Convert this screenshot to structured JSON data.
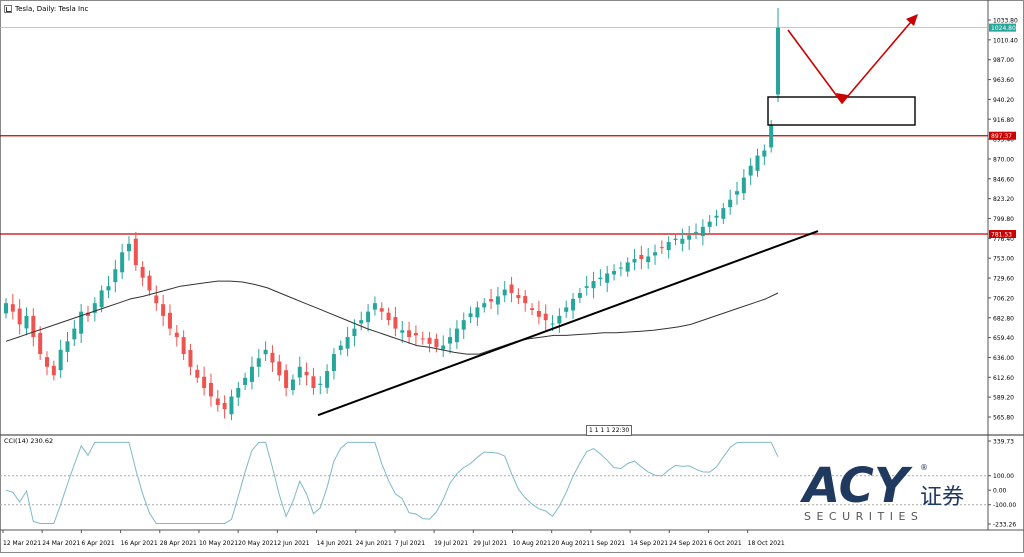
{
  "window": {
    "title": "Tesla, Daily:  Tesla Inc"
  },
  "colors": {
    "bull": "#26a69a",
    "bear": "#ef5350",
    "hline": "#cc0000",
    "trend": "#000000",
    "ma": "#333333",
    "cci": "#7fb8c9",
    "arrow": "#cc0000",
    "price_tag": "#26a69a"
  },
  "price_axis": {
    "labels": [
      "1033.80",
      "1010.40",
      "987.00",
      "963.60",
      "940.20",
      "916.80",
      "893.40",
      "870.00",
      "846.60",
      "823.20",
      "799.80",
      "776.40",
      "753.00",
      "729.60",
      "706.20",
      "682.80",
      "659.40",
      "636.00",
      "612.60",
      "589.20",
      "565.80"
    ],
    "current_price": "1024.80",
    "level_upper": "897.37",
    "level_lower": "781.53"
  },
  "cci_axis": {
    "labels": [
      "339.73",
      "100.00",
      "0.00",
      "-100.00",
      "-233.26"
    ]
  },
  "indicator_label": "CCI(14) 230.62",
  "time_marker": "1 1 1 1 22:30",
  "time_axis": [
    "12 Mar 2021",
    "24 Mar 2021",
    "6 Apr 2021",
    "16 Apr 2021",
    "28 Apr 2021",
    "10 May 2021",
    "20 May 2021",
    "2 Jun 2021",
    "14 Jun 2021",
    "24 Jun 2021",
    "7 Jul 2021",
    "19 Jul 2021",
    "29 Jul 2021",
    "10 Aug 2021",
    "20 Aug 2021",
    "1 Sep 2021",
    "14 Sep 2021",
    "24 Sep 2021",
    "6 Oct 2021",
    "18 Oct 2021"
  ],
  "logo": {
    "brand": "ACY",
    "cn": "证券",
    "sub": "S E C U R I T I E S",
    "reg": "®"
  },
  "chart_data": {
    "type": "candlestick",
    "title": "Tesla, Daily: Tesla Inc",
    "ylim": [
      565.8,
      1033.8
    ],
    "closes": [
      700,
      690,
      675,
      685,
      660,
      640,
      625,
      615,
      645,
      655,
      670,
      690,
      685,
      700,
      715,
      720,
      740,
      760,
      770,
      745,
      730,
      715,
      700,
      685,
      670,
      660,
      640,
      625,
      612,
      600,
      590,
      580,
      575,
      590,
      600,
      612,
      625,
      635,
      645,
      630,
      615,
      600,
      610,
      625,
      615,
      600,
      605,
      620,
      640,
      650,
      660,
      670,
      680,
      690,
      700,
      690,
      680,
      670,
      668,
      660,
      662,
      658,
      652,
      648,
      650,
      660,
      670,
      680,
      688,
      695,
      700,
      702,
      708,
      716,
      712,
      706,
      700,
      692,
      684,
      680,
      676,
      685,
      695,
      705,
      712,
      720,
      726,
      730,
      735,
      738,
      742,
      748,
      752,
      752,
      755,
      760,
      765,
      772,
      776,
      776,
      780,
      784,
      790,
      796,
      803,
      812,
      822,
      832,
      848,
      862,
      874,
      880,
      910,
      1024.8
    ],
    "sma": [
      655,
      660,
      665,
      670,
      675,
      680,
      685,
      690,
      695,
      700,
      705,
      708,
      712,
      716,
      720,
      722,
      724,
      726,
      726,
      725,
      722,
      718,
      712,
      706,
      700,
      694,
      688,
      682,
      676,
      670,
      665,
      660,
      655,
      650,
      648,
      645,
      642,
      640,
      640,
      645,
      650,
      655,
      658,
      660,
      662,
      662,
      663,
      664,
      665,
      665,
      666,
      667,
      668,
      670,
      672,
      675,
      680,
      685,
      690,
      695,
      700,
      705,
      712
    ],
    "cci_last": 230.62,
    "hlines": [
      897.37,
      781.53
    ],
    "current": 1024.8
  }
}
